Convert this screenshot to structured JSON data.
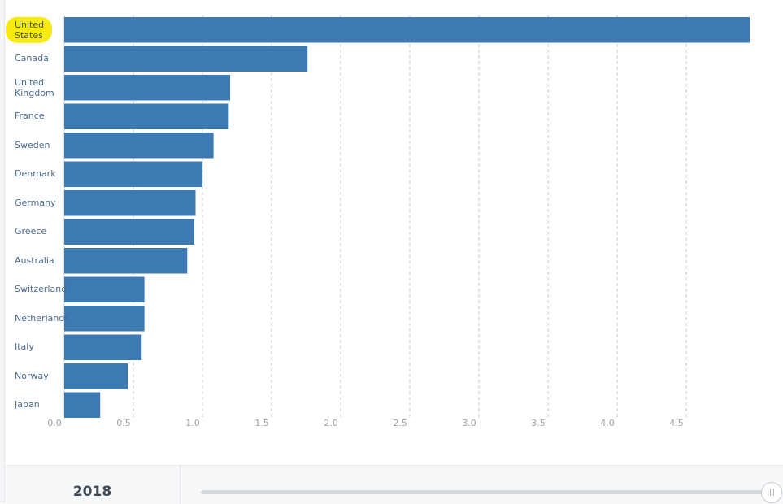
{
  "chart_data": {
    "type": "bar",
    "orientation": "horizontal",
    "title": "",
    "xlabel": "",
    "ylabel": "",
    "categories": [
      "United States",
      "Canada",
      "United Kingdom",
      "France",
      "Sweden",
      "Denmark",
      "Germany",
      "Greece",
      "Australia",
      "Switzerland",
      "Netherlands",
      "Italy",
      "Norway",
      "Japan"
    ],
    "values": [
      4.96,
      1.76,
      1.2,
      1.19,
      1.08,
      1.0,
      0.95,
      0.94,
      0.89,
      0.58,
      0.58,
      0.56,
      0.46,
      0.26
    ],
    "xlim": [
      0,
      5
    ],
    "ticks": [
      "0.0",
      "0.5",
      "1.0",
      "1.5",
      "2.0",
      "2.5",
      "3.0",
      "3.5",
      "4.0",
      "4.5"
    ],
    "tick_values": [
      0,
      0.5,
      1,
      1.5,
      2,
      2.5,
      3,
      3.5,
      4,
      4.5
    ],
    "grid": true,
    "bar_color": "#3d7ab3",
    "highlighted_category": "United States",
    "highlight_color": "#f7ea10"
  },
  "footer": {
    "year": "2018",
    "slider_handle_glyph": "|||"
  }
}
